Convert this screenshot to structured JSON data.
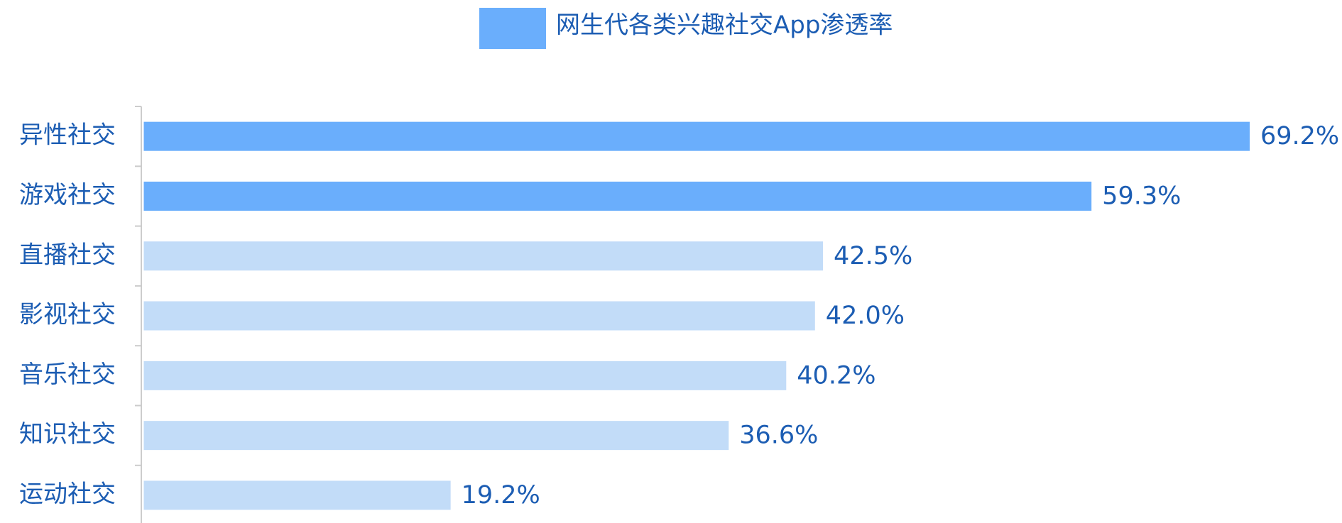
{
  "chart_data": {
    "type": "bar",
    "orientation": "horizontal",
    "categories": [
      "异性社交",
      "游戏社交",
      "直播社交",
      "影视社交",
      "音乐社交",
      "知识社交",
      "运动社交"
    ],
    "series": [
      {
        "name": "网生代各类兴趣社交App渗透率",
        "color": "#6aaefc",
        "values": [
          69.2,
          59.3,
          42.5,
          42.0,
          40.2,
          36.6,
          19.2
        ],
        "value_labels": [
          "69.2%",
          "59.3%",
          "42.5%",
          "42.0%",
          "40.2%",
          "36.6%",
          "19.2%"
        ],
        "bar_colors": [
          "#6aaefc",
          "#6aaefc",
          "#c2dcf8",
          "#c2dcf8",
          "#c2dcf8",
          "#c2dcf8",
          "#c2dcf8"
        ]
      }
    ],
    "legend": "top"
  }
}
